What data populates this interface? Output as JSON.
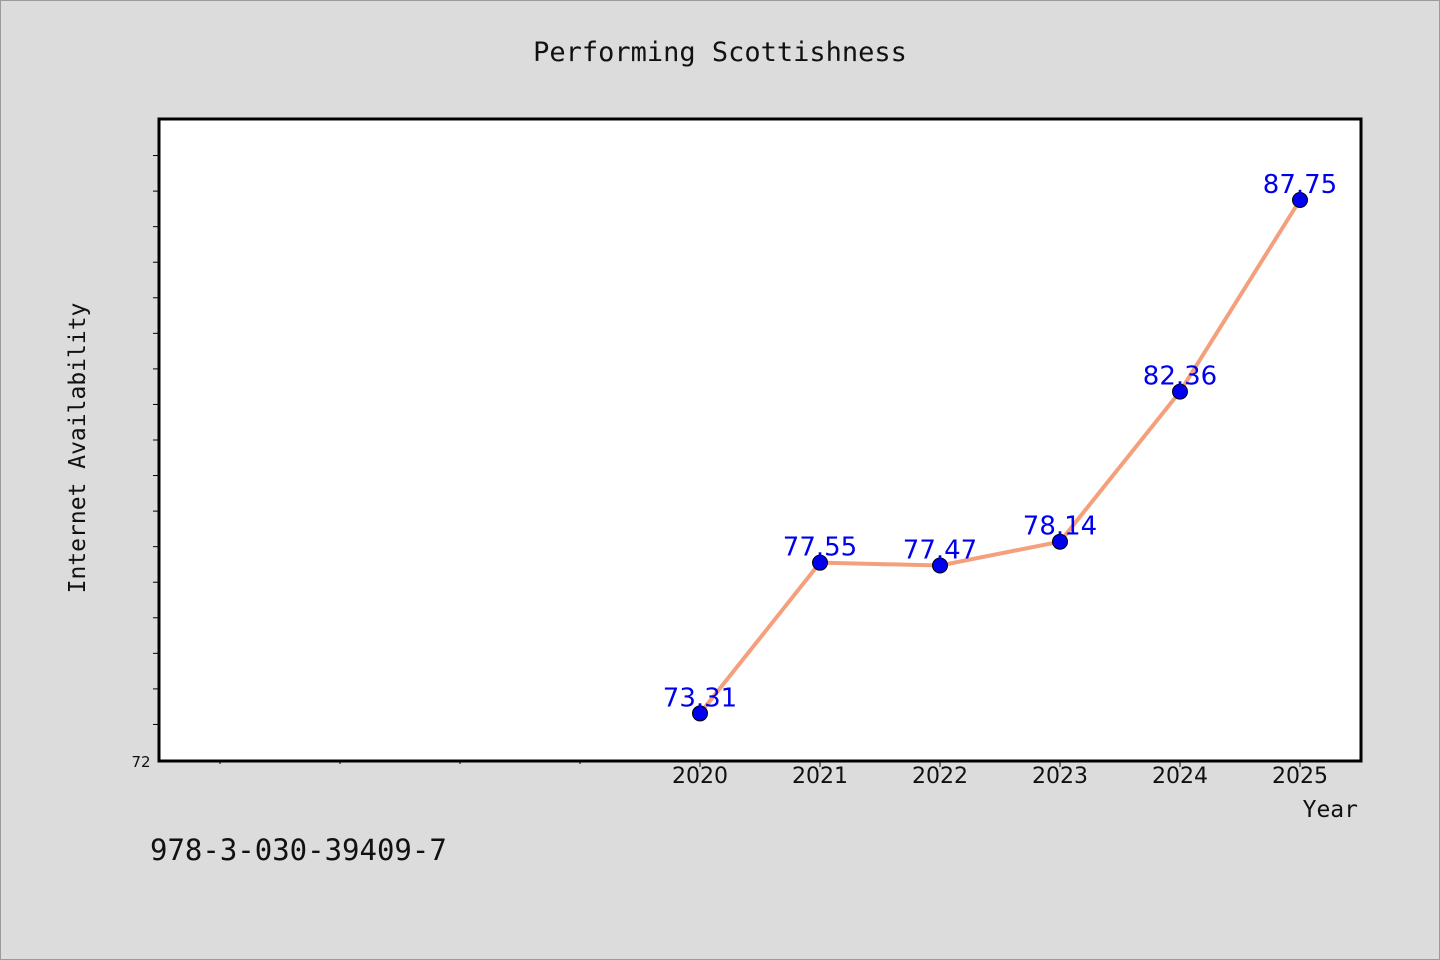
{
  "chart_data": {
    "type": "line",
    "title": "Performing Scottishness",
    "xlabel": "Year",
    "ylabel": "Internet Availability",
    "categories": [
      "2020",
      "2021",
      "2022",
      "2023",
      "2024",
      "2025"
    ],
    "series": [
      {
        "values": [
          73.31,
          77.55,
          77.47,
          78.14,
          82.36,
          87.75
        ]
      }
    ],
    "labels": [
      "73.31",
      "77.55",
      "77.47",
      "78.14",
      "82.36",
      "87.75"
    ],
    "ylim": [
      72,
      90
    ],
    "y_tick_labels": [
      "72"
    ],
    "grid": false,
    "line_color": "#f4a07c",
    "marker_color": "#0000ee",
    "label_color": "#0000ee"
  },
  "footer_text": "978-3-030-39409-7"
}
